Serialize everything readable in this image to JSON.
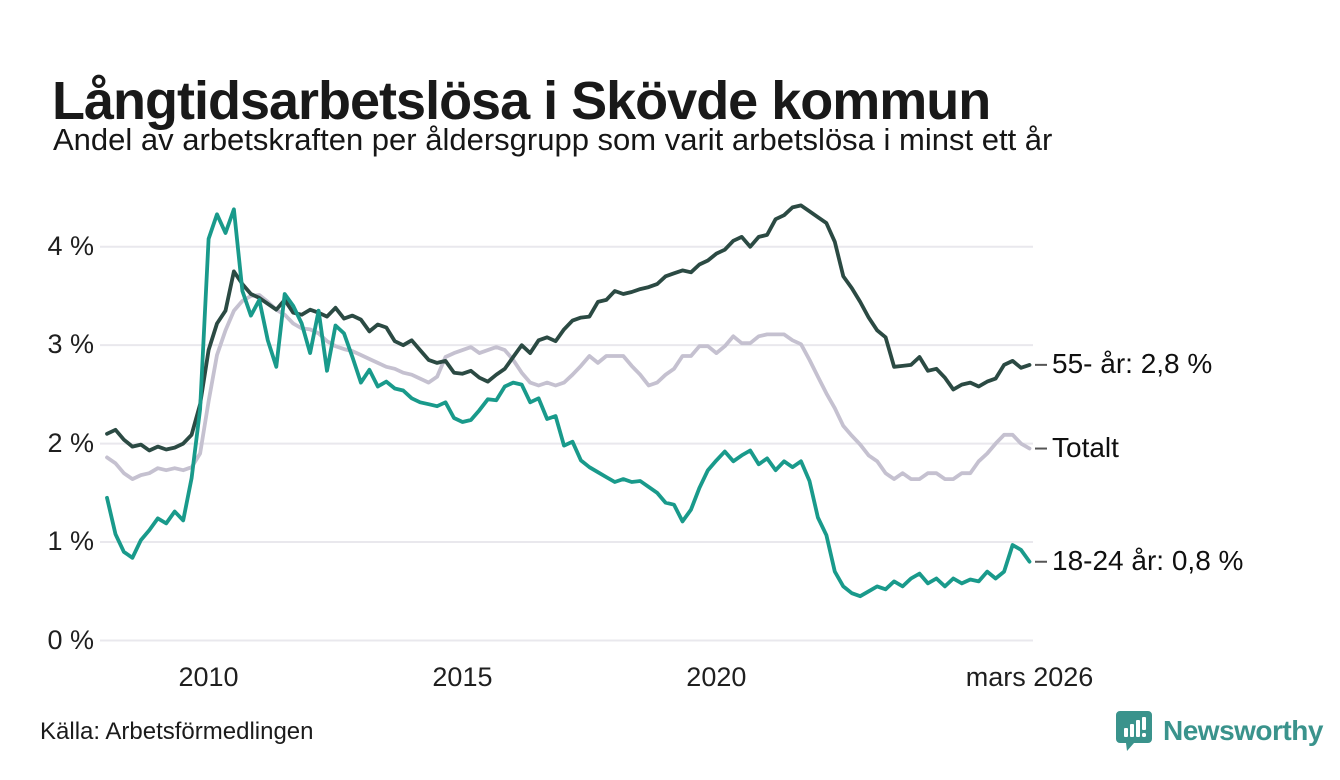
{
  "title": "Långtidsarbetslösa i Skövde kommun",
  "subtitle": "Andel av arbetskraften per åldersgrupp som varit arbetslösa i minst ett år",
  "source": "Källa: Arbetsförmedlingen",
  "branding": {
    "name": "Newsworthy",
    "color": "#3a938c",
    "icon": "bar-chart-speech-bubble-icon"
  },
  "colors": {
    "grid": "#e9e8ed",
    "axis_text": "#1f1f1f",
    "label_dash": "#555555",
    "background": "#ffffff"
  },
  "chart_data": {
    "type": "line",
    "title": "Långtidsarbetslösa i Skövde kommun",
    "subtitle": "Andel av arbetskraften per åldersgrupp som varit arbetslösa i minst ett år",
    "x_start": 2008.0,
    "x_step": 0.166667,
    "x_end": 2026.1667,
    "ylim": [
      0,
      4.52
    ],
    "grid": "horizontal",
    "legend_position": "right-end-labels",
    "y_axis": {
      "ticks": [
        {
          "label": "0 %",
          "v": 0
        },
        {
          "label": "1 %",
          "v": 1
        },
        {
          "label": "2 %",
          "v": 2
        },
        {
          "label": "3 %",
          "v": 3
        },
        {
          "label": "4 %",
          "v": 4
        }
      ]
    },
    "x_axis": {
      "ticks": [
        {
          "label": "2010",
          "t": 2010
        },
        {
          "label": "2015",
          "t": 2015
        },
        {
          "label": "2020",
          "t": 2020
        },
        {
          "label": "mars 2026",
          "t": 2026.1667
        }
      ]
    },
    "series": [
      {
        "name": "Totalt",
        "end_label": "Totalt",
        "end_value": 1.95,
        "color": "#c5c1d0",
        "values": [
          1.86,
          1.8,
          1.7,
          1.64,
          1.68,
          1.7,
          1.75,
          1.73,
          1.75,
          1.73,
          1.76,
          1.9,
          2.43,
          2.9,
          3.15,
          3.35,
          3.45,
          3.5,
          3.51,
          3.44,
          3.36,
          3.31,
          3.22,
          3.17,
          3.16,
          3.12,
          3.04,
          2.99,
          2.96,
          2.94,
          2.9,
          2.86,
          2.82,
          2.78,
          2.76,
          2.72,
          2.7,
          2.66,
          2.62,
          2.68,
          2.88,
          2.92,
          2.95,
          2.98,
          2.92,
          2.95,
          2.98,
          2.95,
          2.85,
          2.72,
          2.62,
          2.59,
          2.62,
          2.59,
          2.62,
          2.7,
          2.79,
          2.89,
          2.82,
          2.89,
          2.89,
          2.89,
          2.79,
          2.7,
          2.59,
          2.62,
          2.7,
          2.76,
          2.89,
          2.89,
          2.99,
          2.99,
          2.92,
          2.99,
          3.09,
          3.02,
          3.02,
          3.09,
          3.11,
          3.11,
          3.11,
          3.05,
          3.01,
          2.85,
          2.68,
          2.51,
          2.36,
          2.18,
          2.08,
          1.99,
          1.88,
          1.82,
          1.7,
          1.64,
          1.7,
          1.64,
          1.64,
          1.7,
          1.7,
          1.64,
          1.64,
          1.7,
          1.7,
          1.82,
          1.9,
          2.0,
          2.09,
          2.09,
          2.0,
          1.95
        ]
      },
      {
        "name": "55- år",
        "end_label": "55- år: 2,8 %",
        "end_value": 2.8,
        "color": "#2b4a43",
        "values": [
          2.1,
          2.14,
          2.04,
          1.97,
          1.99,
          1.93,
          1.97,
          1.94,
          1.96,
          2.0,
          2.09,
          2.4,
          2.95,
          3.22,
          3.35,
          3.75,
          3.62,
          3.52,
          3.48,
          3.42,
          3.36,
          3.46,
          3.33,
          3.31,
          3.36,
          3.33,
          3.29,
          3.38,
          3.27,
          3.3,
          3.26,
          3.14,
          3.21,
          3.18,
          3.04,
          3.0,
          3.05,
          2.95,
          2.85,
          2.82,
          2.84,
          2.72,
          2.71,
          2.74,
          2.67,
          2.63,
          2.7,
          2.76,
          2.88,
          3.0,
          2.92,
          3.05,
          3.08,
          3.04,
          3.16,
          3.25,
          3.28,
          3.29,
          3.44,
          3.46,
          3.55,
          3.52,
          3.54,
          3.57,
          3.59,
          3.62,
          3.7,
          3.73,
          3.76,
          3.74,
          3.82,
          3.86,
          3.93,
          3.97,
          4.06,
          4.1,
          4.0,
          4.1,
          4.12,
          4.28,
          4.32,
          4.4,
          4.42,
          4.36,
          4.3,
          4.24,
          4.05,
          3.7,
          3.58,
          3.44,
          3.28,
          3.15,
          3.08,
          2.78,
          2.79,
          2.8,
          2.88,
          2.74,
          2.76,
          2.67,
          2.55,
          2.6,
          2.62,
          2.58,
          2.63,
          2.66,
          2.8,
          2.84,
          2.77,
          2.8
        ]
      },
      {
        "name": "18-24 år",
        "end_label": "18-24 år: 0,8 %",
        "end_value": 0.8,
        "color": "#199a8b",
        "values": [
          1.45,
          1.08,
          0.9,
          0.84,
          1.02,
          1.12,
          1.24,
          1.19,
          1.31,
          1.22,
          1.65,
          2.35,
          4.08,
          4.33,
          4.14,
          4.38,
          3.55,
          3.3,
          3.46,
          3.05,
          2.78,
          3.52,
          3.4,
          3.22,
          2.92,
          3.35,
          2.74,
          3.2,
          3.12,
          2.88,
          2.62,
          2.75,
          2.58,
          2.63,
          2.56,
          2.54,
          2.46,
          2.42,
          2.4,
          2.38,
          2.42,
          2.26,
          2.22,
          2.24,
          2.34,
          2.45,
          2.44,
          2.58,
          2.62,
          2.6,
          2.42,
          2.46,
          2.25,
          2.28,
          1.98,
          2.02,
          1.83,
          1.76,
          1.71,
          1.66,
          1.61,
          1.64,
          1.61,
          1.62,
          1.56,
          1.5,
          1.4,
          1.38,
          1.21,
          1.33,
          1.55,
          1.73,
          1.83,
          1.92,
          1.82,
          1.88,
          1.93,
          1.79,
          1.85,
          1.73,
          1.82,
          1.76,
          1.82,
          1.62,
          1.25,
          1.07,
          0.7,
          0.55,
          0.48,
          0.45,
          0.5,
          0.55,
          0.52,
          0.6,
          0.55,
          0.63,
          0.68,
          0.58,
          0.63,
          0.55,
          0.63,
          0.58,
          0.62,
          0.6,
          0.7,
          0.63,
          0.7,
          0.97,
          0.92,
          0.8
        ]
      }
    ]
  }
}
